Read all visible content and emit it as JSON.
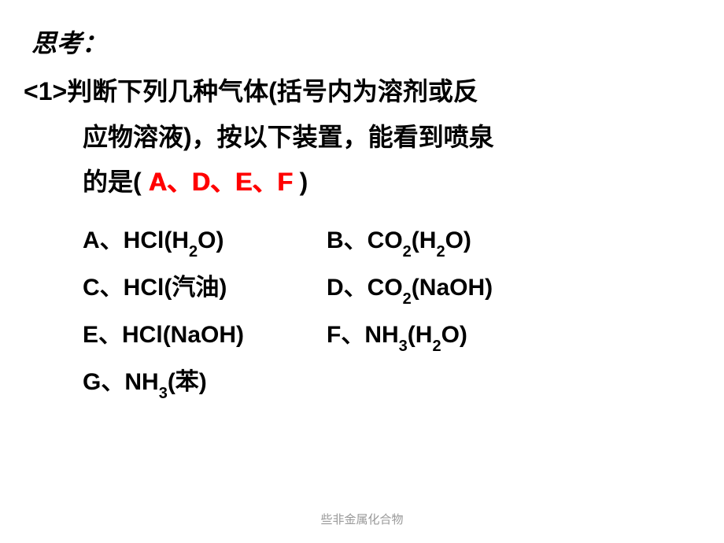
{
  "heading": "思考：",
  "question": {
    "line1": "<1>判断下列几种气体(括号内为溶剂或反",
    "line2": "应物溶液)，按以下装置，能看到喷泉",
    "line3_prefix": "的是(",
    "answer": "A、D、E、F",
    "line3_suffix": "  )"
  },
  "options": {
    "a": {
      "label": "A、",
      "gas": "HCl",
      "solvent_prefix": "(H",
      "solvent_sub": "2",
      "solvent_suffix": "O)"
    },
    "b": {
      "label": "B、",
      "gas_prefix": "CO",
      "gas_sub": "2",
      "solvent_prefix": "(H",
      "solvent_sub": "2",
      "solvent_suffix": "O)"
    },
    "c": {
      "label": "C、",
      "gas": "HCl",
      "solvent": "(汽油)"
    },
    "d": {
      "label": "D、",
      "gas_prefix": "CO",
      "gas_sub": "2",
      "solvent": "(NaOH)"
    },
    "e": {
      "label": "E、",
      "gas": "HCl",
      "solvent": "(NaOH)"
    },
    "f": {
      "label": "F、",
      "gas_prefix": "NH",
      "gas_sub": "3",
      "solvent_prefix": "(H",
      "solvent_sub": "2",
      "solvent_suffix": "O)"
    },
    "g": {
      "label": "G、",
      "gas_prefix": "NH",
      "gas_sub": "3",
      "solvent": "(苯)"
    }
  },
  "footer": "些非金属化合物",
  "colors": {
    "text": "#000000",
    "answer": "#ff0000",
    "footer": "#999999",
    "background": "#ffffff"
  }
}
